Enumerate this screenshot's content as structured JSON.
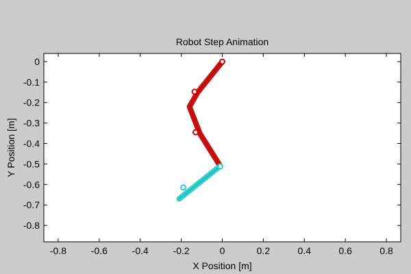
{
  "chart_data": {
    "type": "line",
    "title": "Robot Step Animation",
    "xlabel": "X Position [m]",
    "ylabel": "Y Position [m]",
    "xlim": [
      -0.87,
      0.87
    ],
    "ylim": [
      -0.88,
      0.04
    ],
    "x_ticks": [
      -0.8,
      -0.6,
      -0.4,
      -0.2,
      0,
      0.2,
      0.4,
      0.6,
      0.8
    ],
    "x_tick_labels": [
      "-0.8",
      "-0.6",
      "-0.4",
      "-0.2",
      "0",
      "0.2",
      "0.4",
      "0.6",
      "0.8"
    ],
    "y_ticks": [
      0,
      -0.1,
      -0.2,
      -0.3,
      -0.4,
      -0.5,
      -0.6,
      -0.7,
      -0.8
    ],
    "y_tick_labels": [
      "0",
      "-0.1",
      "-0.2",
      "-0.3",
      "-0.4",
      "-0.5",
      "-0.6",
      "-0.7",
      "-0.8"
    ],
    "grid": false,
    "series": [
      {
        "color": "#cc0000",
        "x": [
          0.0,
          -0.12,
          -0.16,
          -0.11,
          -0.01
        ],
        "y": [
          0.0,
          -0.15,
          -0.22,
          -0.35,
          -0.51
        ]
      },
      {
        "color": "#1fcfcf",
        "x": [
          -0.01,
          -0.21
        ],
        "y": [
          -0.51,
          -0.67
        ]
      }
    ],
    "joint_markers": [
      {
        "color": "#cc0000",
        "x": 0.0,
        "y": 0.0
      },
      {
        "color": "#cc0000",
        "x": -0.135,
        "y": -0.147
      },
      {
        "color": "#cc0000",
        "x": -0.13,
        "y": -0.345
      },
      {
        "color": "#1fcfcf",
        "x": -0.01,
        "y": -0.512
      },
      {
        "color": "#1fcfcf",
        "x": -0.19,
        "y": -0.615
      }
    ]
  }
}
